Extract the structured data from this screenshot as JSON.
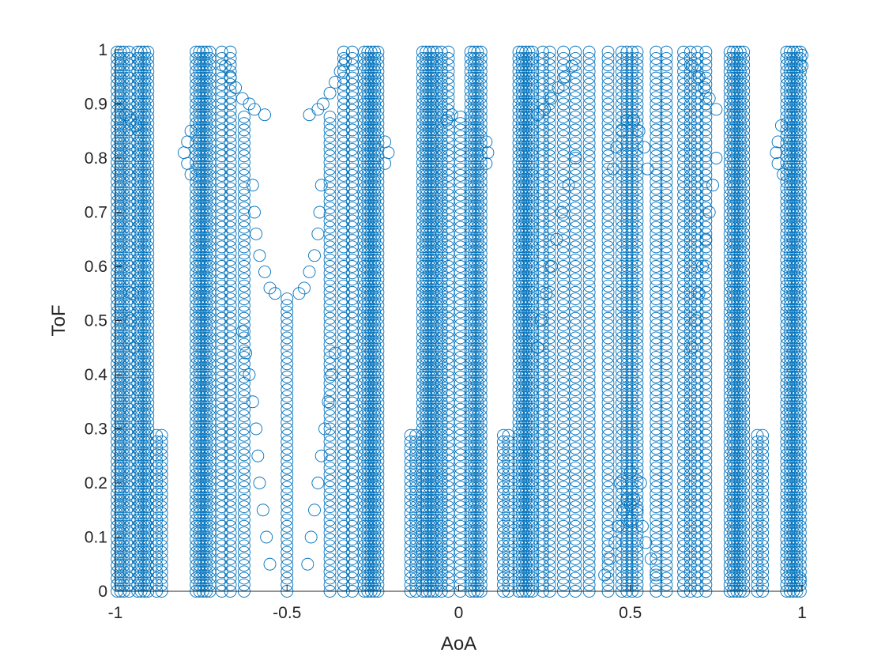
{
  "chart_data": {
    "type": "scatter",
    "title": "",
    "xlabel": "AoA",
    "ylabel": "ToF",
    "xlim": [
      -1,
      1
    ],
    "ylim": [
      0,
      1
    ],
    "x_ticks": [
      "-1",
      "-0.5",
      "0",
      "0.5",
      "1"
    ],
    "y_ticks": [
      "0",
      "0.1",
      "0.2",
      "0.3",
      "0.4",
      "0.5",
      "0.6",
      "0.7",
      "0.8",
      "0.9",
      "1"
    ],
    "grid": false,
    "legend": "none",
    "marker": "circle-open",
    "color": "#0072bd",
    "series": [
      {
        "columns": [
          {
            "x": -0.995,
            "y": [
              0.0,
              1.0
            ]
          },
          {
            "x": -0.985,
            "y": [
              0.0,
              1.0
            ]
          },
          {
            "x": -0.975,
            "y": [
              0.0,
              1.0
            ]
          },
          {
            "x": -0.96,
            "y": [
              0.0,
              1.0
            ]
          },
          {
            "x": -0.935,
            "y": [
              0.0,
              1.0
            ]
          },
          {
            "x": -0.925,
            "y": [
              0.0,
              1.0
            ]
          },
          {
            "x": -0.915,
            "y": [
              0.0,
              1.0
            ]
          },
          {
            "x": -0.905,
            "y": [
              0.0,
              1.0
            ]
          },
          {
            "x": -0.88,
            "y": [
              0.0,
              0.29
            ]
          },
          {
            "x": -0.865,
            "y": [
              0.0,
              0.29
            ]
          },
          {
            "x": -0.765,
            "y": [
              0.0,
              1.0
            ]
          },
          {
            "x": -0.755,
            "y": [
              0.0,
              1.0
            ]
          },
          {
            "x": -0.745,
            "y": [
              0.0,
              1.0
            ]
          },
          {
            "x": -0.735,
            "y": [
              0.0,
              1.0
            ]
          },
          {
            "x": -0.725,
            "y": [
              0.0,
              1.0
            ]
          },
          {
            "x": -0.69,
            "y": [
              0.0,
              1.0
            ]
          },
          {
            "x": -0.665,
            "y": [
              0.0,
              1.0
            ]
          },
          {
            "x": -0.625,
            "y": [
              0.0,
              0.88
            ]
          },
          {
            "x": -0.5,
            "y": [
              0.0,
              0.55
            ]
          },
          {
            "x": -0.375,
            "y": [
              0.0,
              0.88
            ]
          },
          {
            "x": -0.335,
            "y": [
              0.0,
              1.0
            ]
          },
          {
            "x": -0.31,
            "y": [
              0.0,
              1.0
            ]
          },
          {
            "x": -0.275,
            "y": [
              0.0,
              1.0
            ]
          },
          {
            "x": -0.265,
            "y": [
              0.0,
              1.0
            ]
          },
          {
            "x": -0.255,
            "y": [
              0.0,
              1.0
            ]
          },
          {
            "x": -0.245,
            "y": [
              0.0,
              1.0
            ]
          },
          {
            "x": -0.235,
            "y": [
              0.0,
              1.0
            ]
          },
          {
            "x": -0.14,
            "y": [
              0.0,
              0.29
            ]
          },
          {
            "x": -0.125,
            "y": [
              0.0,
              0.29
            ]
          },
          {
            "x": -0.105,
            "y": [
              0.0,
              1.0
            ]
          },
          {
            "x": -0.095,
            "y": [
              0.0,
              1.0
            ]
          },
          {
            "x": -0.085,
            "y": [
              0.0,
              1.0
            ]
          },
          {
            "x": -0.075,
            "y": [
              0.0,
              1.0
            ]
          },
          {
            "x": -0.065,
            "y": [
              0.0,
              1.0
            ]
          },
          {
            "x": -0.05,
            "y": [
              0.0,
              1.0
            ]
          },
          {
            "x": -0.03,
            "y": [
              0.0,
              1.0
            ]
          },
          {
            "x": 0.005,
            "y": [
              0.0,
              0.88
            ]
          },
          {
            "x": 0.035,
            "y": [
              0.0,
              1.0
            ]
          },
          {
            "x": 0.045,
            "y": [
              0.0,
              1.0
            ]
          },
          {
            "x": 0.055,
            "y": [
              0.0,
              1.0
            ]
          },
          {
            "x": 0.065,
            "y": [
              0.0,
              1.0
            ]
          },
          {
            "x": 0.13,
            "y": [
              0.0,
              0.29
            ]
          },
          {
            "x": 0.145,
            "y": [
              0.0,
              0.29
            ]
          },
          {
            "x": 0.175,
            "y": [
              0.0,
              1.0
            ]
          },
          {
            "x": 0.185,
            "y": [
              0.0,
              1.0
            ]
          },
          {
            "x": 0.195,
            "y": [
              0.0,
              1.0
            ]
          },
          {
            "x": 0.205,
            "y": [
              0.0,
              1.0
            ]
          },
          {
            "x": 0.215,
            "y": [
              0.0,
              1.0
            ]
          },
          {
            "x": 0.245,
            "y": [
              0.0,
              1.0
            ]
          },
          {
            "x": 0.265,
            "y": [
              0.0,
              1.0
            ]
          },
          {
            "x": 0.305,
            "y": [
              0.0,
              1.0
            ]
          },
          {
            "x": 0.34,
            "y": [
              0.0,
              1.0
            ]
          },
          {
            "x": 0.38,
            "y": [
              0.0,
              1.0
            ]
          },
          {
            "x": 0.435,
            "y": [
              0.0,
              1.0
            ]
          },
          {
            "x": 0.475,
            "y": [
              0.0,
              1.0
            ]
          },
          {
            "x": 0.49,
            "y": [
              0.0,
              1.0
            ]
          },
          {
            "x": 0.505,
            "y": [
              0.0,
              1.0
            ]
          },
          {
            "x": 0.52,
            "y": [
              0.0,
              1.0
            ]
          },
          {
            "x": 0.575,
            "y": [
              0.0,
              1.0
            ]
          },
          {
            "x": 0.605,
            "y": [
              0.0,
              1.0
            ]
          },
          {
            "x": 0.655,
            "y": [
              0.0,
              1.0
            ]
          },
          {
            "x": 0.675,
            "y": [
              0.0,
              1.0
            ]
          },
          {
            "x": 0.695,
            "y": [
              0.0,
              1.0
            ]
          },
          {
            "x": 0.72,
            "y": [
              0.0,
              1.0
            ]
          },
          {
            "x": 0.79,
            "y": [
              0.0,
              1.0
            ]
          },
          {
            "x": 0.8,
            "y": [
              0.0,
              1.0
            ]
          },
          {
            "x": 0.81,
            "y": [
              0.0,
              1.0
            ]
          },
          {
            "x": 0.82,
            "y": [
              0.0,
              1.0
            ]
          },
          {
            "x": 0.83,
            "y": [
              0.0,
              1.0
            ]
          },
          {
            "x": 0.87,
            "y": [
              0.0,
              0.29
            ]
          },
          {
            "x": 0.885,
            "y": [
              0.0,
              0.29
            ]
          },
          {
            "x": 0.955,
            "y": [
              0.0,
              1.0
            ]
          },
          {
            "x": 0.965,
            "y": [
              0.0,
              1.0
            ]
          },
          {
            "x": 0.975,
            "y": [
              0.0,
              1.0
            ]
          },
          {
            "x": 0.985,
            "y": [
              0.0,
              1.0
            ]
          },
          {
            "x": 0.995,
            "y": [
              0.0,
              1.0
            ]
          }
        ],
        "points": [
          {
            "x": -0.97,
            "y": 0.88
          },
          {
            "x": -0.955,
            "y": 0.87
          },
          {
            "x": -0.94,
            "y": 0.86
          },
          {
            "x": -0.95,
            "y": 0.55
          },
          {
            "x": -0.955,
            "y": 0.5
          },
          {
            "x": -0.945,
            "y": 0.45
          },
          {
            "x": -0.8,
            "y": 0.81
          },
          {
            "x": -0.79,
            "y": 0.83
          },
          {
            "x": -0.79,
            "y": 0.79
          },
          {
            "x": -0.78,
            "y": 0.85
          },
          {
            "x": -0.78,
            "y": 0.77
          },
          {
            "x": -0.68,
            "y": 0.97
          },
          {
            "x": -0.665,
            "y": 0.95
          },
          {
            "x": -0.65,
            "y": 0.93
          },
          {
            "x": -0.63,
            "y": 0.91
          },
          {
            "x": -0.61,
            "y": 0.9
          },
          {
            "x": -0.595,
            "y": 0.89
          },
          {
            "x": -0.565,
            "y": 0.88
          },
          {
            "x": -0.435,
            "y": 0.88
          },
          {
            "x": -0.41,
            "y": 0.89
          },
          {
            "x": -0.395,
            "y": 0.9
          },
          {
            "x": -0.375,
            "y": 0.92
          },
          {
            "x": -0.36,
            "y": 0.94
          },
          {
            "x": -0.345,
            "y": 0.96
          },
          {
            "x": -0.33,
            "y": 0.98
          },
          {
            "x": -0.6,
            "y": 0.75
          },
          {
            "x": -0.595,
            "y": 0.7
          },
          {
            "x": -0.59,
            "y": 0.66
          },
          {
            "x": -0.58,
            "y": 0.62
          },
          {
            "x": -0.565,
            "y": 0.59
          },
          {
            "x": -0.55,
            "y": 0.56
          },
          {
            "x": -0.535,
            "y": 0.55
          },
          {
            "x": -0.465,
            "y": 0.55
          },
          {
            "x": -0.45,
            "y": 0.56
          },
          {
            "x": -0.435,
            "y": 0.59
          },
          {
            "x": -0.42,
            "y": 0.62
          },
          {
            "x": -0.41,
            "y": 0.66
          },
          {
            "x": -0.405,
            "y": 0.7
          },
          {
            "x": -0.4,
            "y": 0.75
          },
          {
            "x": -0.63,
            "y": 0.48
          },
          {
            "x": -0.62,
            "y": 0.44
          },
          {
            "x": -0.61,
            "y": 0.4
          },
          {
            "x": -0.6,
            "y": 0.35
          },
          {
            "x": -0.59,
            "y": 0.3
          },
          {
            "x": -0.585,
            "y": 0.25
          },
          {
            "x": -0.58,
            "y": 0.2
          },
          {
            "x": -0.57,
            "y": 0.15
          },
          {
            "x": -0.56,
            "y": 0.1
          },
          {
            "x": -0.55,
            "y": 0.05
          },
          {
            "x": -0.44,
            "y": 0.05
          },
          {
            "x": -0.43,
            "y": 0.1
          },
          {
            "x": -0.42,
            "y": 0.15
          },
          {
            "x": -0.41,
            "y": 0.2
          },
          {
            "x": -0.4,
            "y": 0.25
          },
          {
            "x": -0.39,
            "y": 0.3
          },
          {
            "x": -0.38,
            "y": 0.35
          },
          {
            "x": -0.37,
            "y": 0.4
          },
          {
            "x": -0.36,
            "y": 0.44
          },
          {
            "x": -0.215,
            "y": 0.83
          },
          {
            "x": -0.205,
            "y": 0.81
          },
          {
            "x": -0.215,
            "y": 0.79
          },
          {
            "x": -0.035,
            "y": 0.87
          },
          {
            "x": -0.02,
            "y": 0.88
          },
          {
            "x": 0.085,
            "y": 0.81
          },
          {
            "x": 0.08,
            "y": 0.83
          },
          {
            "x": 0.08,
            "y": 0.79
          },
          {
            "x": 0.23,
            "y": 0.88
          },
          {
            "x": 0.25,
            "y": 0.89
          },
          {
            "x": 0.27,
            "y": 0.91
          },
          {
            "x": 0.29,
            "y": 0.93
          },
          {
            "x": 0.31,
            "y": 0.95
          },
          {
            "x": 0.33,
            "y": 0.97
          },
          {
            "x": 0.23,
            "y": 0.45
          },
          {
            "x": 0.24,
            "y": 0.5
          },
          {
            "x": 0.255,
            "y": 0.55
          },
          {
            "x": 0.27,
            "y": 0.6
          },
          {
            "x": 0.285,
            "y": 0.65
          },
          {
            "x": 0.3,
            "y": 0.7
          },
          {
            "x": 0.32,
            "y": 0.75
          },
          {
            "x": 0.34,
            "y": 0.8
          },
          {
            "x": 0.44,
            "y": 0.06
          },
          {
            "x": 0.455,
            "y": 0.09
          },
          {
            "x": 0.465,
            "y": 0.12
          },
          {
            "x": 0.48,
            "y": 0.15
          },
          {
            "x": 0.49,
            "y": 0.17
          },
          {
            "x": 0.51,
            "y": 0.17
          },
          {
            "x": 0.52,
            "y": 0.15
          },
          {
            "x": 0.535,
            "y": 0.12
          },
          {
            "x": 0.545,
            "y": 0.09
          },
          {
            "x": 0.56,
            "y": 0.06
          },
          {
            "x": 0.575,
            "y": 0.03
          },
          {
            "x": 0.425,
            "y": 0.03
          },
          {
            "x": 0.47,
            "y": 0.2
          },
          {
            "x": 0.5,
            "y": 0.22
          },
          {
            "x": 0.53,
            "y": 0.2
          },
          {
            "x": 0.5,
            "y": 0.16
          },
          {
            "x": 0.5,
            "y": 0.13
          },
          {
            "x": 0.45,
            "y": 0.78
          },
          {
            "x": 0.46,
            "y": 0.82
          },
          {
            "x": 0.475,
            "y": 0.85
          },
          {
            "x": 0.49,
            "y": 0.87
          },
          {
            "x": 0.51,
            "y": 0.87
          },
          {
            "x": 0.525,
            "y": 0.85
          },
          {
            "x": 0.54,
            "y": 0.82
          },
          {
            "x": 0.55,
            "y": 0.78
          },
          {
            "x": 0.68,
            "y": 0.97
          },
          {
            "x": 0.7,
            "y": 0.95
          },
          {
            "x": 0.715,
            "y": 0.93
          },
          {
            "x": 0.73,
            "y": 0.91
          },
          {
            "x": 0.75,
            "y": 0.89
          },
          {
            "x": 0.75,
            "y": 0.8
          },
          {
            "x": 0.74,
            "y": 0.75
          },
          {
            "x": 0.73,
            "y": 0.7
          },
          {
            "x": 0.72,
            "y": 0.65
          },
          {
            "x": 0.71,
            "y": 0.6
          },
          {
            "x": 0.7,
            "y": 0.55
          },
          {
            "x": 0.69,
            "y": 0.5
          },
          {
            "x": 0.68,
            "y": 0.45
          },
          {
            "x": 0.925,
            "y": 0.81
          },
          {
            "x": 0.93,
            "y": 0.83
          },
          {
            "x": 0.93,
            "y": 0.79
          },
          {
            "x": 0.94,
            "y": 0.86
          },
          {
            "x": 0.945,
            "y": 0.77
          },
          {
            "x": 1.0,
            "y": 0.99
          },
          {
            "x": 1.0,
            "y": 0.97
          },
          {
            "x": 0.995,
            "y": 0.02
          }
        ]
      }
    ]
  }
}
